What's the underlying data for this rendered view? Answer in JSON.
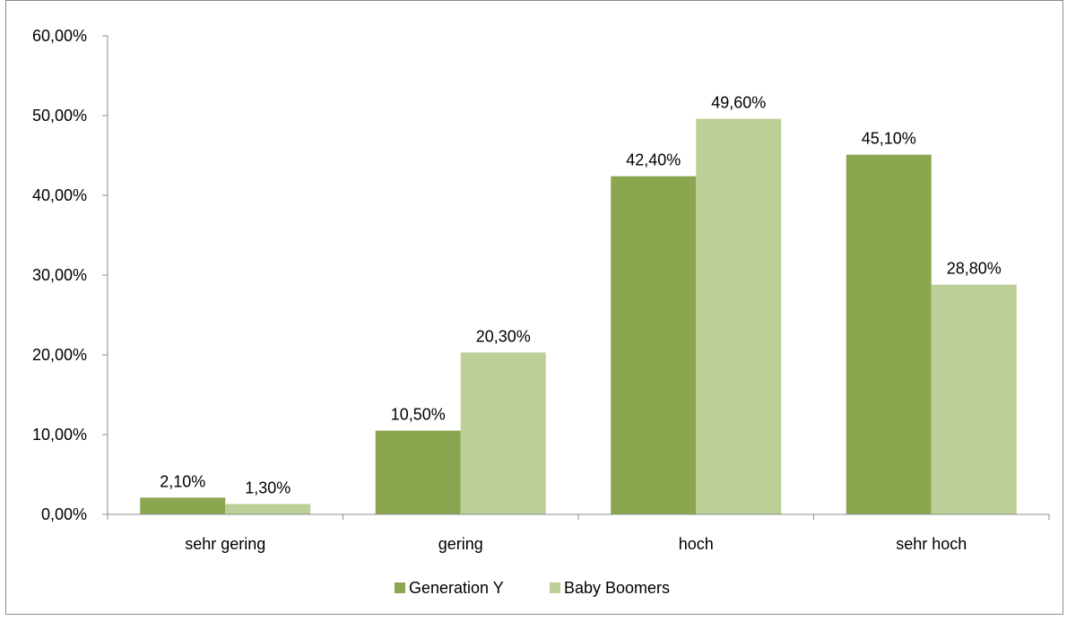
{
  "chart_data": {
    "type": "bar",
    "title": "",
    "xlabel": "",
    "ylabel": "",
    "categories": [
      "sehr gering",
      "gering",
      "hoch",
      "sehr hoch"
    ],
    "series": [
      {
        "name": "Generation Y",
        "color": "#8aa64f",
        "values": [
          2.1,
          10.5,
          42.4,
          45.1
        ],
        "labels": [
          "2,10%",
          "10,50%",
          "42,40%",
          "45,10%"
        ]
      },
      {
        "name": "Baby Boomers",
        "color": "#bccf96",
        "values": [
          1.3,
          20.3,
          49.6,
          28.8
        ],
        "labels": [
          "1,30%",
          "20,30%",
          "49,60%",
          "28,80%"
        ]
      }
    ],
    "ylim": [
      0,
      60
    ],
    "yticks": [
      0,
      10,
      20,
      30,
      40,
      50,
      60
    ],
    "ytick_labels": [
      "0,00%",
      "10,00%",
      "20,00%",
      "30,00%",
      "40,00%",
      "50,00%",
      "60,00%"
    ],
    "grid": false,
    "legend_position": "bottom"
  }
}
